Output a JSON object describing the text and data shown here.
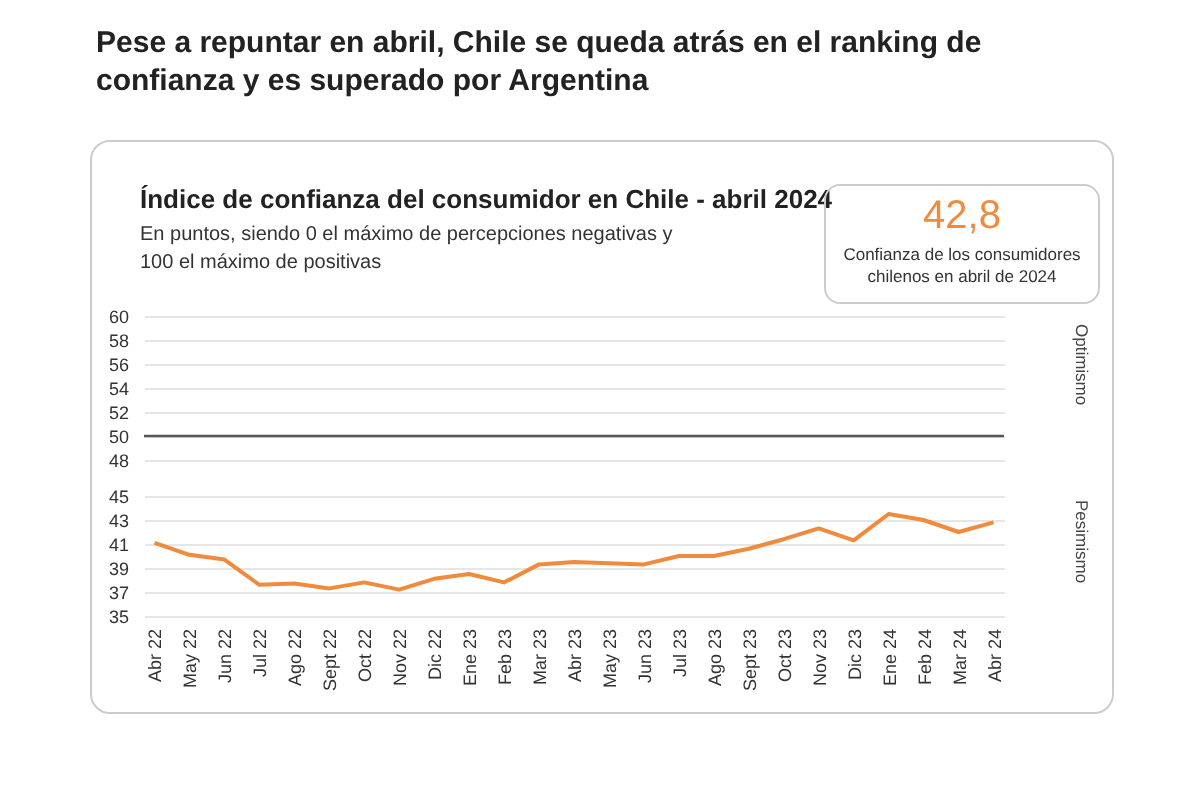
{
  "chart_data": {
    "type": "line",
    "title": "Pese a repuntar en abril, Chile se queda atrás en el ranking de confianza y es superado por Argentina",
    "subtitle": "Índice de confianza del consumidor en Chile - abril 2024",
    "annotations": [
      "En puntos, siendo 0 el máximo de percepciones negativas y 100 el máximo de positivas",
      "42,8",
      "Confianza de los consumidores chilenos en abril de 2024",
      "Optimismo",
      "Pesimismo"
    ],
    "categories": [
      "Abr 22",
      "May 22",
      "Jun 22",
      "Jul 22",
      "Ago 22",
      "Sept 22",
      "Oct 22",
      "Nov 22",
      "Dic 22",
      "Ene 23",
      "Feb 23",
      "Mar 23",
      "Abr 23",
      "May 23",
      "Jun 23",
      "Jul 23",
      "Ago 23",
      "Sept 23",
      "Oct 23",
      "Nov 23",
      "Dic 23",
      "Ene 24",
      "Feb 24",
      "Mar 24",
      "Abr 24"
    ],
    "series": [
      {
        "color": "#f08a3c",
        "values": [
          41.1,
          40.1,
          39.7,
          37.6,
          37.7,
          37.3,
          37.8,
          37.2,
          38.1,
          38.5,
          37.8,
          39.3,
          39.5,
          39.4,
          39.3,
          40.0,
          40.0,
          40.6,
          41.4,
          42.3,
          41.3,
          43.5,
          43.0,
          42.0,
          42.8
        ]
      }
    ],
    "ylim": [
      35,
      60
    ],
    "yticks": [
      35,
      37,
      39,
      41,
      43,
      45,
      48,
      50,
      52,
      54,
      56,
      58,
      60
    ],
    "ref_lines": [
      {
        "axis": "y",
        "value": 50,
        "color": "#555555"
      }
    ],
    "grid": "y",
    "marker": "none",
    "line_style": "solid"
  }
}
